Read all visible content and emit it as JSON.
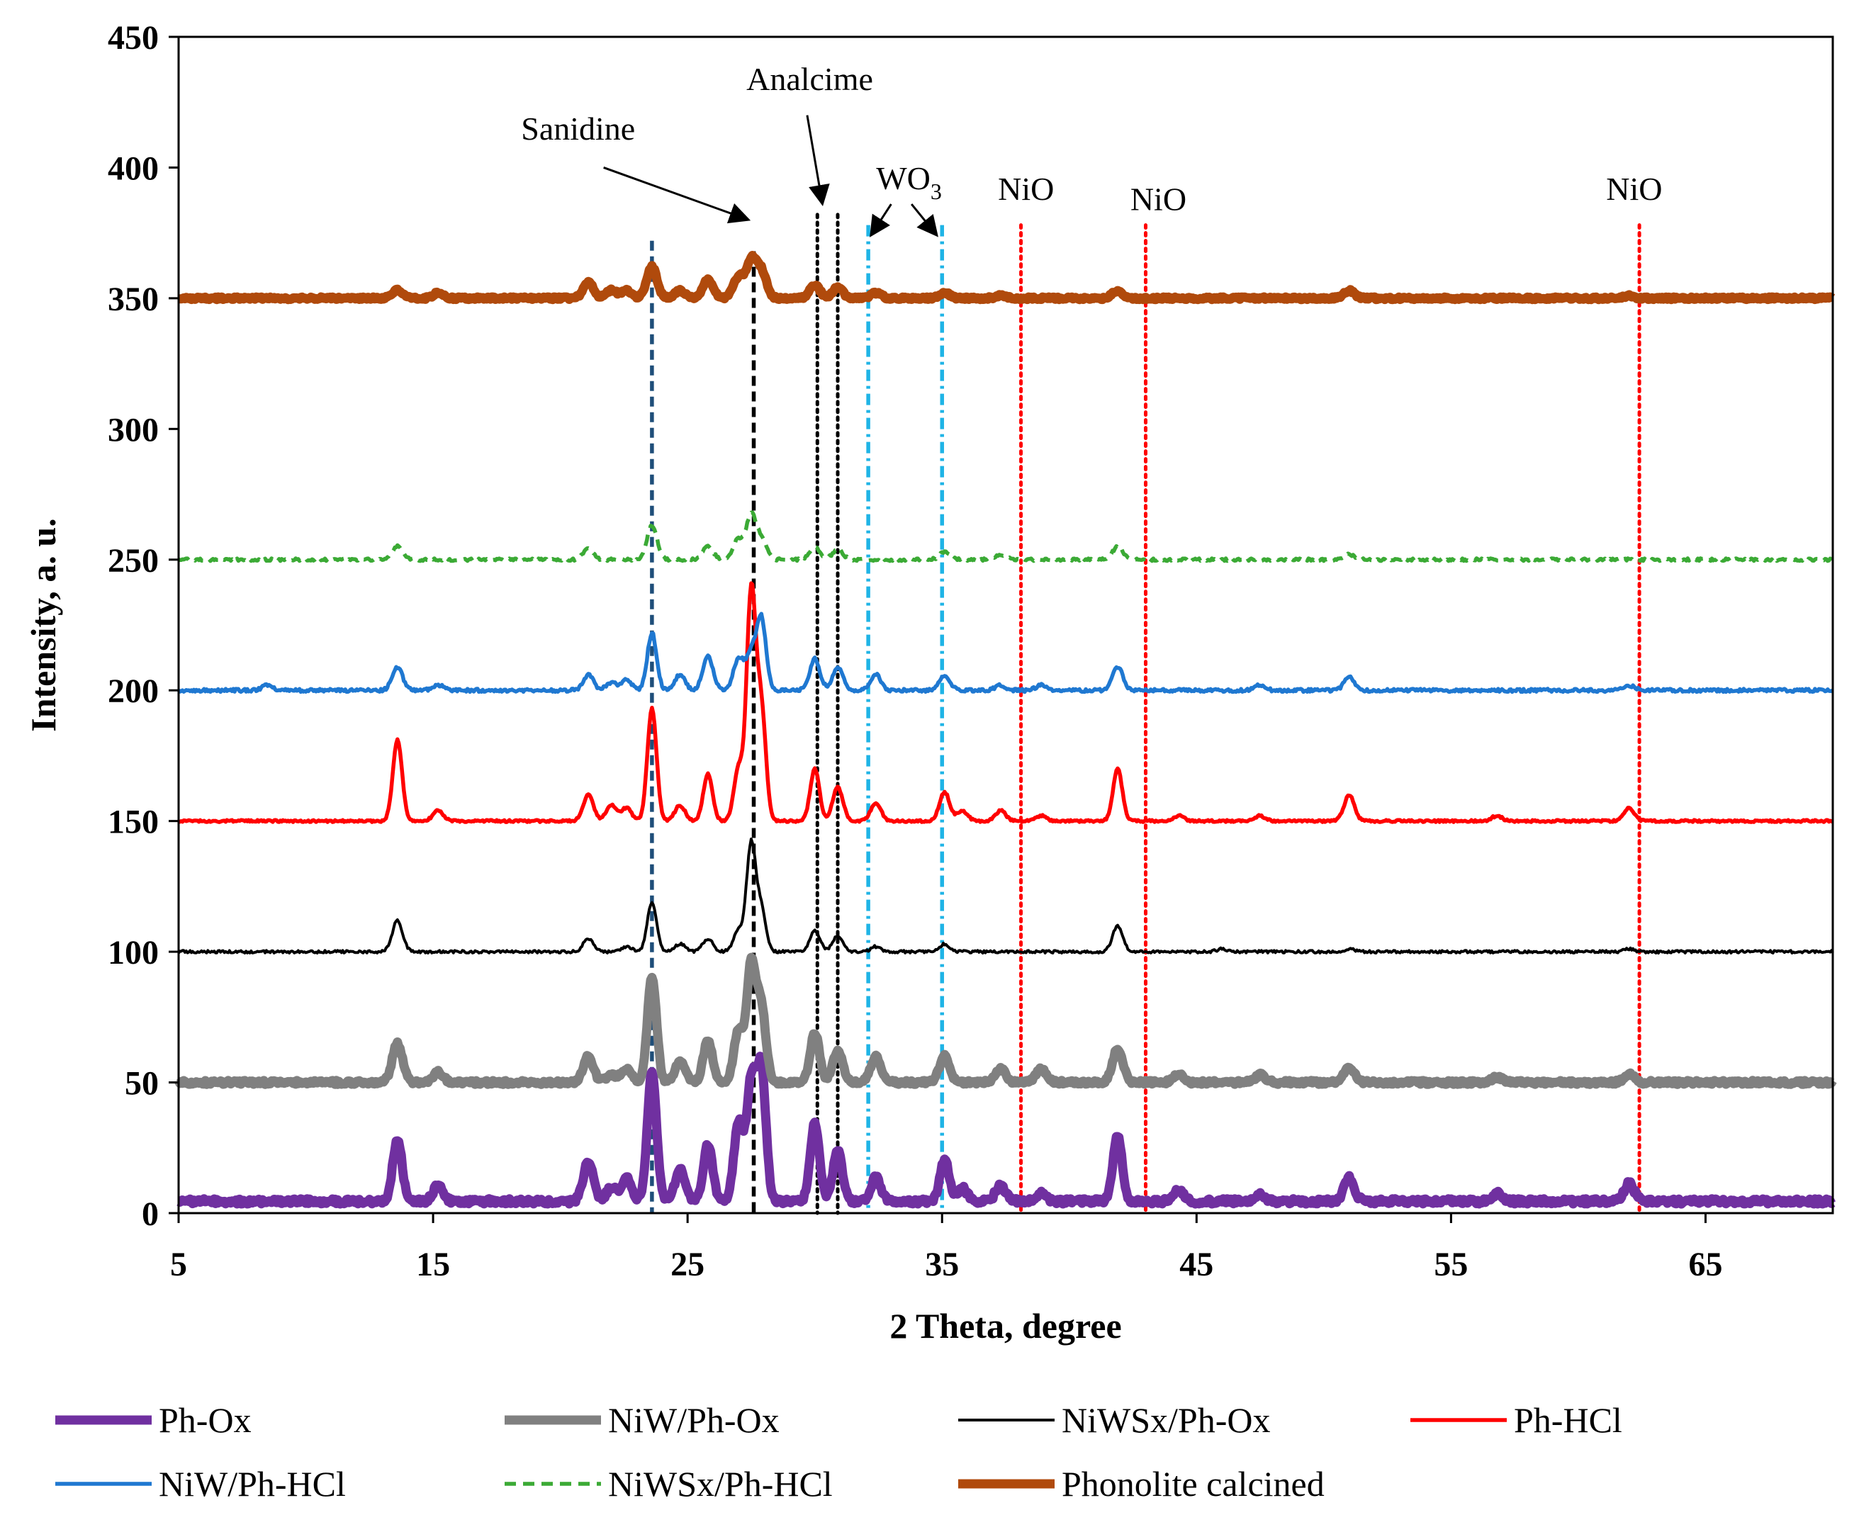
{
  "chart_data": {
    "type": "line",
    "title": "",
    "xlabel": "2 Theta, degree",
    "ylabel": "Intensity, a. u.",
    "xlim": [
      5,
      70
    ],
    "ylim": [
      0,
      450
    ],
    "x_ticks": [
      5,
      15,
      25,
      35,
      45,
      55,
      65
    ],
    "y_ticks": [
      0,
      50,
      100,
      150,
      200,
      250,
      300,
      350,
      400,
      450
    ],
    "grid": false,
    "legend_position": "bottom",
    "series": [
      {
        "name": "Ph-Ox",
        "baseline": 4.5,
        "color": "#7030A0",
        "dash": "solid",
        "width": "thick",
        "noise": 2,
        "peaks": [
          [
            13.6,
            24
          ],
          [
            15.2,
            6
          ],
          [
            21.1,
            15
          ],
          [
            22.0,
            5
          ],
          [
            22.6,
            9
          ],
          [
            23.6,
            50
          ],
          [
            24.7,
            12
          ],
          [
            25.8,
            22
          ],
          [
            27.0,
            30
          ],
          [
            27.5,
            45
          ],
          [
            27.9,
            50
          ],
          [
            30.0,
            30
          ],
          [
            30.9,
            20
          ],
          [
            32.4,
            9
          ],
          [
            35.1,
            16
          ],
          [
            35.8,
            5
          ],
          [
            37.3,
            6
          ],
          [
            38.9,
            3
          ],
          [
            41.9,
            25
          ],
          [
            44.3,
            4
          ],
          [
            47.5,
            3
          ],
          [
            51.0,
            9
          ],
          [
            56.8,
            3
          ],
          [
            62.0,
            7
          ]
        ]
      },
      {
        "name": "NiW/Ph-Ox",
        "baseline": 50,
        "color": "#808080",
        "dash": "solid",
        "width": "thick",
        "noise": 1.5,
        "peaks": [
          [
            13.6,
            15
          ],
          [
            15.2,
            4
          ],
          [
            21.1,
            10
          ],
          [
            22.0,
            3
          ],
          [
            22.6,
            5
          ],
          [
            23.6,
            40
          ],
          [
            24.7,
            8
          ],
          [
            25.8,
            16
          ],
          [
            27.0,
            20
          ],
          [
            27.5,
            45
          ],
          [
            27.9,
            28
          ],
          [
            30.0,
            19
          ],
          [
            30.9,
            12
          ],
          [
            32.4,
            10
          ],
          [
            35.1,
            10
          ],
          [
            37.3,
            5
          ],
          [
            38.9,
            5
          ],
          [
            41.9,
            13
          ],
          [
            44.3,
            3
          ],
          [
            47.5,
            3
          ],
          [
            51.0,
            6
          ],
          [
            56.8,
            2
          ],
          [
            62.0,
            3
          ]
        ]
      },
      {
        "name": "NiWSx/Ph-Ox",
        "baseline": 100,
        "color": "#000000",
        "dash": "solid",
        "width": "thin",
        "noise": 1,
        "peaks": [
          [
            13.6,
            12
          ],
          [
            21.1,
            5
          ],
          [
            22.6,
            2
          ],
          [
            23.6,
            19
          ],
          [
            24.7,
            3
          ],
          [
            25.8,
            5
          ],
          [
            27.0,
            8
          ],
          [
            27.5,
            41
          ],
          [
            27.9,
            16
          ],
          [
            30.0,
            8
          ],
          [
            30.9,
            6
          ],
          [
            32.4,
            2
          ],
          [
            35.1,
            3
          ],
          [
            41.9,
            10
          ],
          [
            46.0,
            1
          ],
          [
            51.0,
            1
          ],
          [
            62.0,
            1
          ]
        ]
      },
      {
        "name": "Ph-HCl",
        "baseline": 150,
        "color": "#FF0000",
        "dash": "solid",
        "width": "medium",
        "noise": 0.8,
        "peaks": [
          [
            13.6,
            31
          ],
          [
            15.2,
            4
          ],
          [
            21.1,
            10
          ],
          [
            22.0,
            6
          ],
          [
            22.6,
            5
          ],
          [
            23.6,
            43
          ],
          [
            24.7,
            6
          ],
          [
            25.8,
            18
          ],
          [
            27.0,
            20
          ],
          [
            27.5,
            87
          ],
          [
            27.9,
            42
          ],
          [
            30.0,
            20
          ],
          [
            30.9,
            13
          ],
          [
            32.4,
            7
          ],
          [
            35.1,
            11
          ],
          [
            35.8,
            4
          ],
          [
            37.3,
            4
          ],
          [
            38.9,
            2
          ],
          [
            41.9,
            20
          ],
          [
            44.3,
            2
          ],
          [
            47.5,
            2
          ],
          [
            51.0,
            10
          ],
          [
            56.8,
            2
          ],
          [
            62.0,
            5
          ]
        ]
      },
      {
        "name": "NiW/Ph-HCl",
        "baseline": 200,
        "color": "#1F78D1",
        "dash": "solid",
        "width": "medium",
        "noise": 1.2,
        "peaks": [
          [
            8.5,
            2
          ],
          [
            13.6,
            9
          ],
          [
            15.2,
            2
          ],
          [
            21.1,
            6
          ],
          [
            22.0,
            3
          ],
          [
            22.6,
            4
          ],
          [
            23.6,
            22
          ],
          [
            24.7,
            6
          ],
          [
            25.8,
            13
          ],
          [
            27.0,
            12
          ],
          [
            27.5,
            14
          ],
          [
            27.9,
            27
          ],
          [
            30.0,
            12
          ],
          [
            30.9,
            9
          ],
          [
            32.4,
            6
          ],
          [
            35.1,
            6
          ],
          [
            37.3,
            2
          ],
          [
            38.9,
            2
          ],
          [
            41.9,
            9
          ],
          [
            47.5,
            2
          ],
          [
            51.0,
            5
          ],
          [
            62.0,
            2
          ]
        ]
      },
      {
        "name": "NiWSx/Ph-HCl",
        "baseline": 250,
        "color": "#3BAA35",
        "dash": "dashed",
        "width": "medium",
        "noise": 1,
        "peaks": [
          [
            13.6,
            5
          ],
          [
            21.1,
            4
          ],
          [
            23.6,
            13
          ],
          [
            25.8,
            5
          ],
          [
            27.0,
            8
          ],
          [
            27.5,
            17
          ],
          [
            27.9,
            8
          ],
          [
            30.0,
            5
          ],
          [
            30.9,
            4
          ],
          [
            35.1,
            3
          ],
          [
            37.3,
            2
          ],
          [
            41.9,
            5
          ],
          [
            51.0,
            2
          ]
        ]
      },
      {
        "name": "Phonolite calcined",
        "baseline": 350,
        "color": "#B04A0C",
        "dash": "solid",
        "width": "thick",
        "noise": 1,
        "peaks": [
          [
            13.6,
            3
          ],
          [
            15.2,
            2
          ],
          [
            21.1,
            6
          ],
          [
            22.0,
            3
          ],
          [
            22.6,
            3
          ],
          [
            23.6,
            12
          ],
          [
            24.7,
            3
          ],
          [
            25.8,
            7
          ],
          [
            27.0,
            8
          ],
          [
            27.5,
            14
          ],
          [
            27.9,
            10
          ],
          [
            30.0,
            5
          ],
          [
            30.9,
            4
          ],
          [
            32.4,
            2
          ],
          [
            35.1,
            2
          ],
          [
            37.3,
            1
          ],
          [
            41.9,
            3
          ],
          [
            51.0,
            3
          ],
          [
            62.0,
            1
          ]
        ]
      }
    ],
    "reference_lines": [
      {
        "x": 23.6,
        "color": "#1F4E79",
        "dash": "dashed",
        "ymax": 372
      },
      {
        "x": 27.6,
        "color": "#000000",
        "dash": "dashed",
        "ymax": 368
      },
      {
        "x": 30.1,
        "color": "#000000",
        "dash": "dotted",
        "ymax": 382
      },
      {
        "x": 30.9,
        "color": "#000000",
        "dash": "dotted",
        "ymax": 382
      },
      {
        "x": 32.1,
        "color": "#1FB4E6",
        "dash": "dashdot",
        "ymax": 378
      },
      {
        "x": 35.0,
        "color": "#1FB4E6",
        "dash": "dashdot",
        "ymax": 378
      },
      {
        "x": 38.1,
        "color": "#FF0000",
        "dash": "dotted",
        "ymax": 378
      },
      {
        "x": 43.0,
        "color": "#FF0000",
        "dash": "dotted",
        "ymax": 378
      },
      {
        "x": 62.4,
        "color": "#FF0000",
        "dash": "dotted",
        "ymax": 378
      }
    ],
    "annotations": [
      {
        "text": "Sanidine",
        "x": 20.7,
        "y": 415,
        "arrow_from": [
          21.7,
          400
        ],
        "arrow_to": [
          27.4,
          380
        ]
      },
      {
        "text": "Analcime",
        "x": 29.8,
        "y": 434,
        "arrow_from": [
          29.7,
          420
        ],
        "arrow_to": [
          30.3,
          386
        ]
      },
      {
        "text": "WO",
        "subscript": "3",
        "x": 33.7,
        "y": 396,
        "arrow_from": [
          33.0,
          386
        ],
        "arrow_to": [
          32.2,
          374
        ],
        "arrow2_from": [
          33.8,
          386
        ],
        "arrow2_to": [
          34.8,
          374
        ]
      },
      {
        "text": "NiO",
        "x": 38.3,
        "y": 392
      },
      {
        "text": "NiO",
        "x": 43.5,
        "y": 388
      },
      {
        "text": "NiO",
        "x": 62.2,
        "y": 392
      }
    ]
  }
}
